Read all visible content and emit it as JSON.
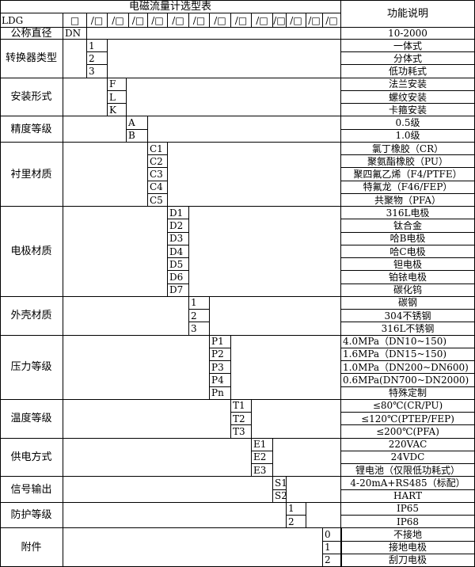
{
  "title": "电磁流量计选型表",
  "desc_header": "功能说明",
  "model_row": {
    "prefix": "LDG",
    "first": "□",
    "slots": [
      "/□",
      "/□",
      "/□",
      "/□",
      "/□",
      "/□",
      "/□",
      "/□",
      "/□",
      "/□",
      "/□",
      "/□",
      "/□"
    ]
  },
  "nominal": {
    "label": "公称直径",
    "code": "DN",
    "desc": "10-2000"
  },
  "groups": [
    {
      "label": "转换器类型",
      "items": [
        {
          "code": "1",
          "desc": "一体式"
        },
        {
          "code": "2",
          "desc": "分体式"
        },
        {
          "code": "3",
          "desc": "低功耗式"
        }
      ]
    },
    {
      "label": "安装形式",
      "items": [
        {
          "code": "F",
          "desc": "法兰安装"
        },
        {
          "code": "L",
          "desc": "螺纹安装"
        },
        {
          "code": "K",
          "desc": "卡箍安装"
        }
      ]
    },
    {
      "label": "精度等级",
      "items": [
        {
          "code": "A",
          "desc": "0.5级"
        },
        {
          "code": "B",
          "desc": "1.0级"
        }
      ]
    },
    {
      "label": "衬里材质",
      "items": [
        {
          "code": "C1",
          "desc": "氯丁橡胶（CR）"
        },
        {
          "code": "C2",
          "desc": "聚氨酯橡胶（PU）"
        },
        {
          "code": "C3",
          "desc": "聚四氟乙烯（F4/PTFE）"
        },
        {
          "code": "C4",
          "desc": "特氟龙（F46/FEP）"
        },
        {
          "code": "C5",
          "desc": "共聚物（PFA）"
        }
      ]
    },
    {
      "label": "电极材质",
      "items": [
        {
          "code": "D1",
          "desc": "316L电极"
        },
        {
          "code": "D2",
          "desc": "钛合金"
        },
        {
          "code": "D3",
          "desc": "哈B电极"
        },
        {
          "code": "D4",
          "desc": "哈C电极"
        },
        {
          "code": "D5",
          "desc": "钽电极"
        },
        {
          "code": "D6",
          "desc": "铂铱电极"
        },
        {
          "code": "D7",
          "desc": "碳化钨"
        }
      ]
    },
    {
      "label": "外壳材质",
      "items": [
        {
          "code": "1",
          "desc": "碳钢"
        },
        {
          "code": "2",
          "desc": "304不锈钢"
        },
        {
          "code": "3",
          "desc": "316L不锈钢"
        }
      ]
    },
    {
      "label": "压力等级",
      "items": [
        {
          "code": "P1",
          "desc": "4.0MPa（DN10~150)",
          "left": true
        },
        {
          "code": "P2",
          "desc": "1.6MPa（DN15~150)",
          "left": true
        },
        {
          "code": "P3",
          "desc": "1.0MPa（DN200~DN600)",
          "left": true
        },
        {
          "code": "P4",
          "desc": "0.6MPa(DN700~DN2000)",
          "left": true
        },
        {
          "code": "Pn",
          "desc": "特殊定制"
        }
      ]
    },
    {
      "label": "温度等级",
      "items": [
        {
          "code": "T1",
          "desc": "≤80℃(CR/PU)"
        },
        {
          "code": "T2",
          "desc": "≤120℃(PTEP/FEP)"
        },
        {
          "code": "T3",
          "desc": "≤200℃(PFA)"
        }
      ]
    },
    {
      "label": "供电方式",
      "items": [
        {
          "code": "E1",
          "desc": "220VAC"
        },
        {
          "code": "E2",
          "desc": "24VDC"
        },
        {
          "code": "E3",
          "desc": "锂电池（仅限低功耗式）"
        }
      ]
    },
    {
      "label": "信号输出",
      "items": [
        {
          "code": "S1",
          "desc": "4-20mA+RS485（标配）"
        },
        {
          "code": "S2",
          "desc": "HART"
        }
      ]
    },
    {
      "label": "防护等级",
      "items": [
        {
          "code": "1",
          "desc": "IP65"
        },
        {
          "code": "2",
          "desc": "IP68"
        }
      ]
    },
    {
      "label": "附件",
      "items": [
        {
          "code": "0",
          "desc": "不接地"
        },
        {
          "code": "1",
          "desc": "接地电极"
        },
        {
          "code": "2",
          "desc": "刮刀电极"
        }
      ]
    }
  ]
}
